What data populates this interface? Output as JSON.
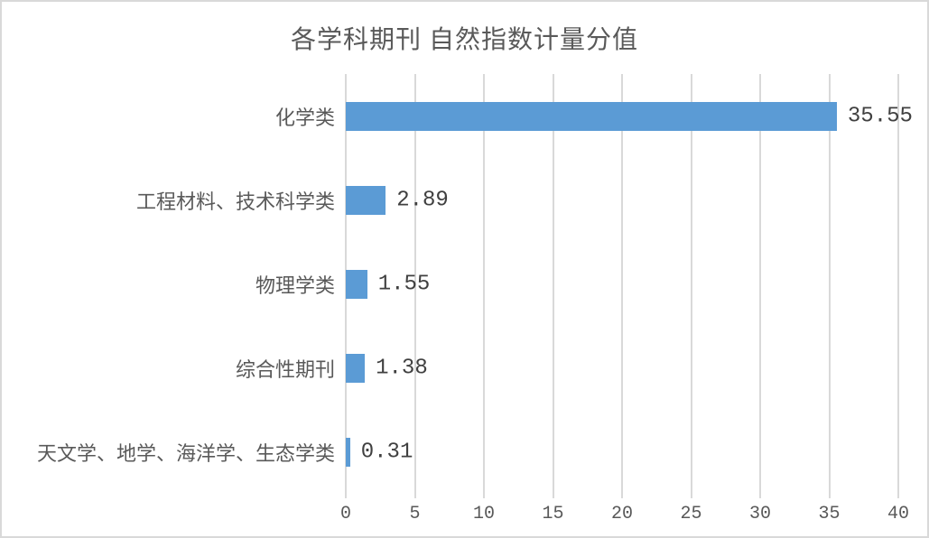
{
  "chart_data": {
    "type": "bar",
    "orientation": "horizontal",
    "title": "各学科期刊 自然指数计量分值",
    "categories": [
      "化学类",
      "工程材料、技术科学类",
      "物理学类",
      "综合性期刊",
      "天文学、地学、海洋学、生态学类"
    ],
    "values": [
      35.55,
      2.89,
      1.55,
      1.38,
      0.31
    ],
    "data_labels": [
      "35.55",
      "2.89",
      "1.55",
      "1.38",
      "0.31"
    ],
    "xlabel": "",
    "ylabel": "",
    "xlim": [
      0,
      40
    ],
    "x_ticks": [
      0,
      5,
      10,
      15,
      20,
      25,
      30,
      35,
      40
    ],
    "grid": true,
    "legend": false,
    "colors": {
      "bar": "#5b9bd5",
      "gridline": "#d9d9d9",
      "frame_border": "#d9d9d9",
      "title_text": "#595959",
      "category_text": "#595959",
      "value_text": "#404040",
      "axis_text": "#595959",
      "background": "#ffffff"
    }
  }
}
